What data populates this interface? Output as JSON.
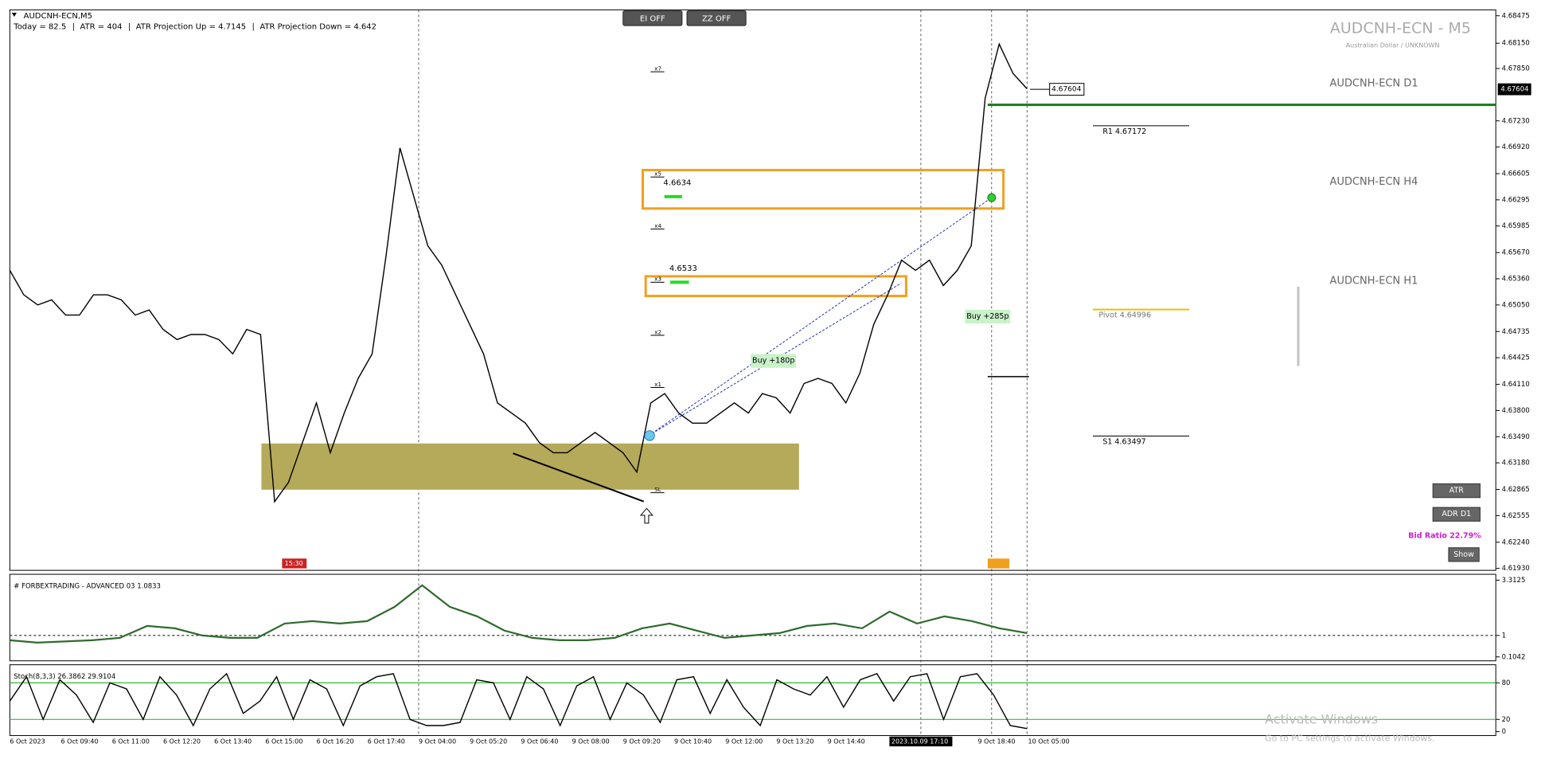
{
  "window_title": "AUDCNH-ECN,M5",
  "info_line": [
    "Today = 82.5",
    "ATR = 404",
    "ATR Projection Up = 4.7145",
    "ATR Projection Down = 4.642"
  ],
  "buttons": [
    "EI OFF",
    "ZZ OFF"
  ],
  "watermark": {
    "title": "AUDCNH-ECN - M5",
    "subtitle": "Australian Dollar / UNKNOWN"
  },
  "mini_charts": [
    "AUDCNH-ECN D1",
    "AUDCNH-ECN H4",
    "AUDCNH-ECN H1"
  ],
  "side_buttons": [
    "ATR",
    "ADR D1",
    "Show"
  ],
  "bid_ratio": "Bid Ratio 22.79%",
  "activate_windows": {
    "title": "Activate Windows",
    "subtitle": "Go to PC settings to activate Windows."
  },
  "chart_data": [
    {
      "type": "line",
      "ylim": [
        4.6193,
        4.68475
      ],
      "yticks": [
        4.68475,
        {
          "value": 4.6815,
          "label": "4.68150"
        },
        {
          "value": 4.6785,
          "label": "4.67850"
        },
        {
          "value": 4.6723,
          "label": "4.67230"
        },
        {
          "value": 4.6692,
          "label": "4.66920"
        },
        4.66605,
        4.66295,
        4.65985,
        {
          "value": 4.6567,
          "label": "4.65670"
        },
        {
          "value": 4.6536,
          "label": "4.65360"
        },
        {
          "value": 4.6505,
          "label": "4.65050"
        },
        4.64735,
        4.64425,
        {
          "value": 4.6411,
          "label": "4.64110"
        },
        {
          "value": 4.638,
          "label": "4.63800"
        },
        {
          "value": 4.6349,
          "label": "4.63490"
        },
        {
          "value": 4.6318,
          "label": "4.63180"
        },
        4.62865,
        4.62555,
        {
          "value": 4.6224,
          "label": "4.62240"
        },
        {
          "value": 4.6193,
          "label": "4.61930"
        }
      ],
      "x_labels": [
        "6 Oct 2023",
        "6 Oct 09:40",
        "6 Oct 11:00",
        "6 Oct 12:20",
        "6 Oct 13:40",
        "6 Oct 15:00",
        "6 Oct 16:20",
        "6 Oct 17:40",
        "9 Oct 04:00",
        "9 Oct 05:20",
        "9 Oct 06:40",
        "9 Oct 08:00",
        "9 Oct 09:20",
        "9 Oct 10:40",
        "9 Oct 12:00",
        "9 Oct 13:20",
        "9 Oct 14:40",
        "2023.10.09 17:10",
        "9 Oct 18:40",
        "10 Oct 05:00"
      ],
      "color": "#000000",
      "values": [
        4.6546,
        4.6517,
        4.6505,
        4.6511,
        4.6493,
        4.6493,
        4.6517,
        4.6517,
        4.6511,
        4.6493,
        4.6499,
        4.6476,
        4.6464,
        4.647,
        4.647,
        4.6464,
        4.6447,
        4.6476,
        4.647,
        4.6272,
        4.6295,
        4.6342,
        4.6389,
        4.633,
        4.6377,
        4.6418,
        4.6447,
        4.6563,
        4.6691,
        4.6633,
        4.6575,
        4.6552,
        4.6517,
        4.6482,
        4.6447,
        4.6389,
        4.6377,
        4.6365,
        4.6342,
        4.633,
        4.633,
        4.6342,
        4.6354,
        4.6342,
        4.633,
        4.6307,
        4.6389,
        4.64,
        4.6377,
        4.6365,
        4.6365,
        4.6377,
        4.6389,
        4.6377,
        4.64,
        4.6395,
        4.6377,
        4.6412,
        4.6418,
        4.6412,
        4.6389,
        4.6424,
        4.6482,
        4.6517,
        4.6558,
        4.6546,
        4.6558,
        4.6528,
        4.6546,
        4.6575,
        4.675,
        4.6814,
        4.6779,
        4.6761
      ],
      "current_price": {
        "value": 4.67604,
        "label": "4.67604"
      },
      "resistance_line": 4.6742,
      "pivots": [
        {
          "label": "R1 4.67172",
          "value": 4.67172,
          "color": "#000000"
        },
        {
          "label": "Pivot 4.64996",
          "value": 4.64996,
          "color": "#e6c200"
        },
        {
          "label": "S1 4.63497",
          "value": 4.63497,
          "color": "#000000"
        }
      ],
      "zones": [
        {
          "label": "4.6634",
          "top": 4.66647,
          "bottom": 4.66192,
          "color": "#f0a020"
        },
        {
          "label": "4.6533",
          "top": 4.65389,
          "bottom": 4.65156,
          "color": "#f0a020"
        },
        {
          "top": 4.63409,
          "bottom": 4.62862,
          "color": "#b5a95a"
        }
      ],
      "level_marks": [
        "x7",
        "x5",
        "x4",
        "x3",
        "x2",
        "x1",
        "SL"
      ],
      "annotations": [
        "Buy +180p",
        "Buy +285p",
        "15:30"
      ]
    },
    {
      "type": "line",
      "title": "# FORBEXTRADING - ADVANCED 03 1.0833",
      "ylim": [
        0.1042,
        3.3125
      ],
      "yticks": [
        3.3125,
        1,
        0.1042
      ],
      "color": "#2e6b2e",
      "values": [
        0.8,
        0.7,
        0.75,
        0.8,
        0.9,
        1.4,
        1.3,
        1.0,
        0.9,
        0.9,
        1.5,
        1.6,
        1.5,
        1.6,
        2.2,
        3.1,
        2.2,
        1.8,
        1.2,
        0.9,
        0.8,
        0.8,
        0.9,
        1.3,
        1.5,
        1.2,
        0.9,
        1.0,
        1.1,
        1.4,
        1.5,
        1.3,
        2.0,
        1.5,
        1.8,
        1.6,
        1.3,
        1.1
      ]
    },
    {
      "type": "line",
      "title": "Stoch(8,3,3) 26.3862 29.9104",
      "ylim": [
        0,
        100
      ],
      "yticks": [
        80,
        20,
        0
      ],
      "levels": [
        80,
        20
      ],
      "color": "#000000",
      "values": [
        50,
        90,
        20,
        85,
        60,
        15,
        80,
        70,
        20,
        90,
        60,
        10,
        70,
        95,
        30,
        50,
        90,
        20,
        85,
        70,
        10,
        75,
        90,
        95,
        20,
        10,
        10,
        15,
        85,
        80,
        20,
        90,
        70,
        10,
        75,
        90,
        20,
        80,
        60,
        15,
        85,
        90,
        30,
        85,
        40,
        10,
        85,
        70,
        60,
        90,
        40,
        85,
        95,
        50,
        90,
        95,
        20,
        90,
        95,
        60,
        10,
        5
      ]
    }
  ]
}
